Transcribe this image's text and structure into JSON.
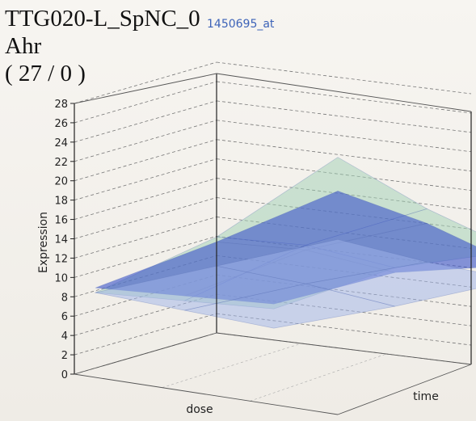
{
  "header": {
    "title_line1": "TTG020-L_SpNC_0",
    "title_line2": "Ahr",
    "title_line3": "( 27 / 0 )",
    "probe_id": "1450695_at"
  },
  "colors": {
    "surface_back": "#9fcfb4",
    "surface_mid": "#3f57c9",
    "surface_low": "#9fb4ea",
    "grid": "#777777",
    "axis": "#222222"
  },
  "chart_data": {
    "type": "surface3d",
    "title": "TTG020-L_SpNC_0",
    "ylabel": "Expression",
    "xlabel": "dose",
    "zlabel": "time",
    "zlim": [
      0,
      28
    ],
    "z_ticks": [
      0,
      2,
      4,
      6,
      8,
      10,
      12,
      14,
      16,
      18,
      20,
      22,
      24,
      26,
      28
    ],
    "grid": true,
    "surfaces": [
      {
        "name": "",
        "color": "#9fcfb4",
        "values": [
          [
            4.0,
            8.5,
            15.5
          ],
          [
            4.5,
            9.0,
            11.5
          ],
          [
            5.0,
            8.0,
            8.5
          ]
        ]
      },
      {
        "name": "",
        "color": "#3f57c9",
        "values": [
          [
            4.5,
            8.0,
            12.0
          ],
          [
            5.0,
            8.5,
            10.0
          ],
          [
            5.5,
            7.5,
            7.0
          ]
        ]
      },
      {
        "name": "",
        "color": "#9fb4ea",
        "values": [
          [
            4.0,
            5.5,
            7.0
          ],
          [
            3.5,
            5.0,
            6.0
          ],
          [
            3.0,
            4.0,
            5.5
          ]
        ]
      }
    ]
  }
}
